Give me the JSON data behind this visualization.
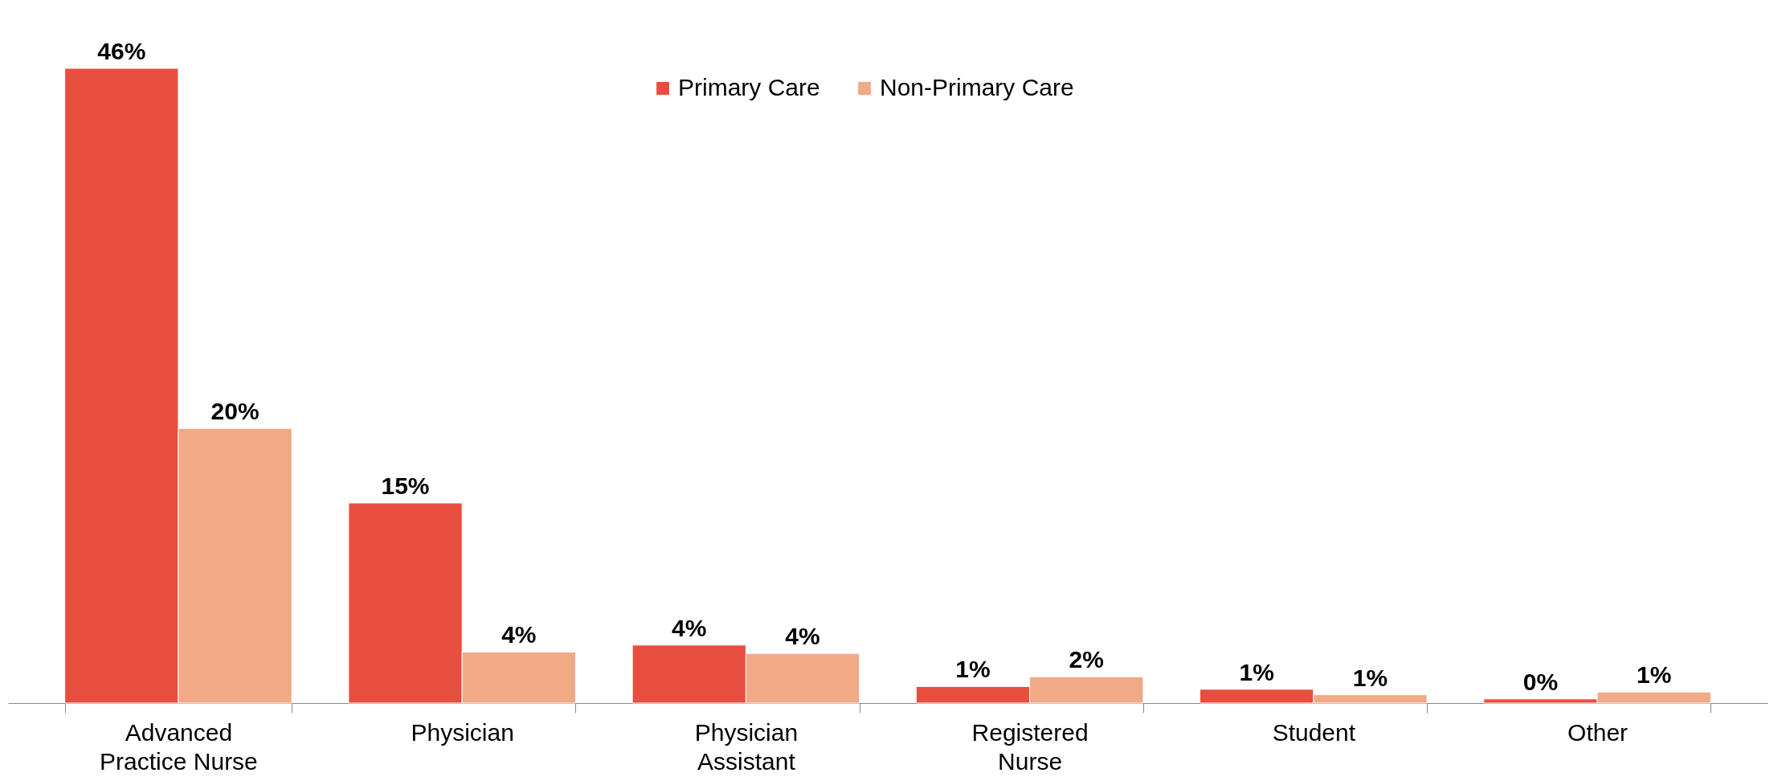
{
  "chart_data": {
    "type": "bar",
    "categories": [
      "Advanced Practice Nurse",
      "Physician",
      "Physician Assistant",
      "Registered Nurse",
      "Student",
      "Other"
    ],
    "series": [
      {
        "name": "Primary Care",
        "color": "#e84e3f",
        "values": [
          46,
          14.5,
          4.2,
          1.2,
          1.0,
          0.3
        ],
        "value_labels": [
          "46%",
          "15%",
          "4%",
          "1%",
          "1%",
          "0%"
        ]
      },
      {
        "name": "Non-Primary Care",
        "color": "#f2a985",
        "values": [
          19.9,
          3.7,
          3.6,
          1.9,
          0.6,
          0.8
        ],
        "value_labels": [
          "20%",
          "4%",
          "4%",
          "2%",
          "1%",
          "1%"
        ]
      }
    ],
    "legend": "top",
    "grid": false
  }
}
